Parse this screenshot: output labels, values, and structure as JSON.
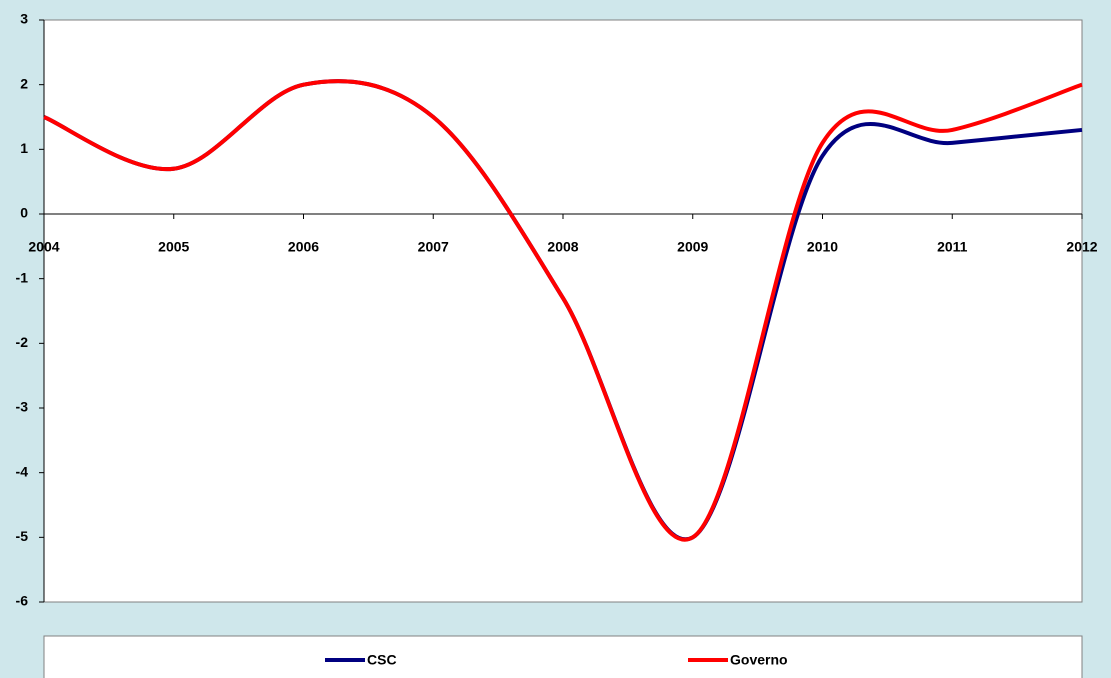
{
  "chart_data": {
    "type": "line",
    "categories": [
      "2004",
      "2005",
      "2006",
      "2007",
      "2008",
      "2009",
      "2010",
      "2011",
      "2012"
    ],
    "series": [
      {
        "name": "CSC",
        "color": "#000080",
        "values": [
          1.5,
          0.7,
          2.0,
          1.5,
          -1.3,
          -5.0,
          0.9,
          1.1,
          1.3
        ]
      },
      {
        "name": "Governo",
        "color": "#ff0000",
        "values": [
          1.5,
          0.7,
          2.0,
          1.5,
          -1.3,
          -5.0,
          1.1,
          1.3,
          2.0
        ]
      }
    ],
    "ylim": [
      -6,
      3
    ],
    "yticks": [
      -6,
      -5,
      -4,
      -3,
      -2,
      -1,
      0,
      1,
      2,
      3
    ],
    "smooth": true,
    "legend": "bottom"
  }
}
